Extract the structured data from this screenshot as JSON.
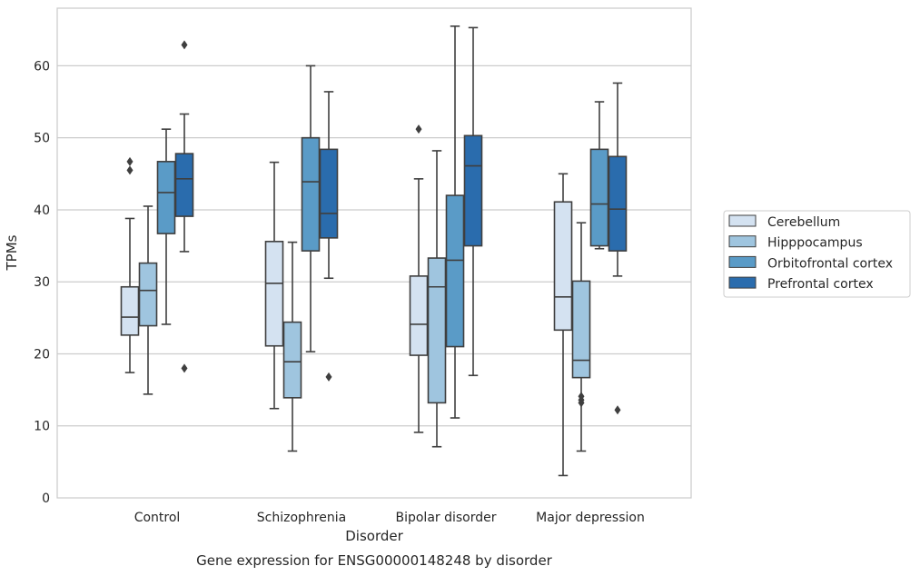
{
  "chart_data": {
    "type": "box",
    "title": "Gene expression for ENSG00000148248 by disorder",
    "xlabel": "Disorder",
    "ylabel": "TPMs",
    "ylim": [
      0,
      68
    ],
    "yticks": [
      0,
      10,
      20,
      30,
      40,
      50,
      60
    ],
    "grid": "horizontal",
    "legend_position": "right",
    "categories": [
      "Control",
      "Schizophrenia",
      "Bipolar disorder",
      "Major depression"
    ],
    "series": [
      {
        "name": "Cerebellum",
        "color": "#d4e2f1",
        "boxes": [
          {
            "whisker_low": 17.4,
            "q1": 22.6,
            "median": 25.1,
            "q3": 29.3,
            "whisker_high": 38.8,
            "outliers": [
              45.5,
              46.7
            ]
          },
          {
            "whisker_low": 12.4,
            "q1": 21.1,
            "median": 29.8,
            "q3": 35.6,
            "whisker_high": 46.6,
            "outliers": []
          },
          {
            "whisker_low": 9.1,
            "q1": 19.8,
            "median": 24.1,
            "q3": 30.8,
            "whisker_high": 44.3,
            "outliers": [
              51.2
            ]
          },
          {
            "whisker_low": 3.1,
            "q1": 23.3,
            "median": 27.9,
            "q3": 41.1,
            "whisker_high": 45.0,
            "outliers": []
          }
        ]
      },
      {
        "name": "Hipppocampus",
        "color": "#9fc5df",
        "boxes": [
          {
            "whisker_low": 14.4,
            "q1": 23.9,
            "median": 28.8,
            "q3": 32.6,
            "whisker_high": 40.5,
            "outliers": []
          },
          {
            "whisker_low": 6.5,
            "q1": 13.9,
            "median": 18.9,
            "q3": 24.4,
            "whisker_high": 35.5,
            "outliers": []
          },
          {
            "whisker_low": 7.1,
            "q1": 13.2,
            "median": 29.3,
            "q3": 33.3,
            "whisker_high": 48.2,
            "outliers": []
          },
          {
            "whisker_low": 6.5,
            "q1": 16.7,
            "median": 19.1,
            "q3": 30.1,
            "whisker_high": 38.2,
            "outliers": [
              13.2,
              13.6,
              14.1
            ]
          }
        ]
      },
      {
        "name": "Orbitofrontal cortex",
        "color": "#5a9bc7",
        "boxes": [
          {
            "whisker_low": 24.1,
            "q1": 36.7,
            "median": 42.4,
            "q3": 46.7,
            "whisker_high": 51.2,
            "outliers": []
          },
          {
            "whisker_low": 20.3,
            "q1": 34.3,
            "median": 43.9,
            "q3": 50.0,
            "whisker_high": 60.0,
            "outliers": []
          },
          {
            "whisker_low": 11.1,
            "q1": 21.0,
            "median": 33.0,
            "q3": 42.0,
            "whisker_high": 65.5,
            "outliers": []
          },
          {
            "whisker_low": 34.6,
            "q1": 35.0,
            "median": 40.8,
            "q3": 48.4,
            "whisker_high": 55.0,
            "outliers": []
          }
        ]
      },
      {
        "name": "Prefrontal cortex",
        "color": "#2a6cad",
        "boxes": [
          {
            "whisker_low": 34.2,
            "q1": 39.1,
            "median": 44.3,
            "q3": 47.8,
            "whisker_high": 53.3,
            "outliers": [
              18.0,
              62.9
            ]
          },
          {
            "whisker_low": 30.5,
            "q1": 36.1,
            "median": 39.5,
            "q3": 48.4,
            "whisker_high": 56.4,
            "outliers": [
              16.8
            ]
          },
          {
            "whisker_low": 17.0,
            "q1": 35.0,
            "median": 46.1,
            "q3": 50.3,
            "whisker_high": 65.3,
            "outliers": []
          },
          {
            "whisker_low": 30.8,
            "q1": 34.3,
            "median": 40.1,
            "q3": 47.4,
            "whisker_high": 57.6,
            "outliers": [
              12.2
            ]
          }
        ]
      }
    ]
  }
}
